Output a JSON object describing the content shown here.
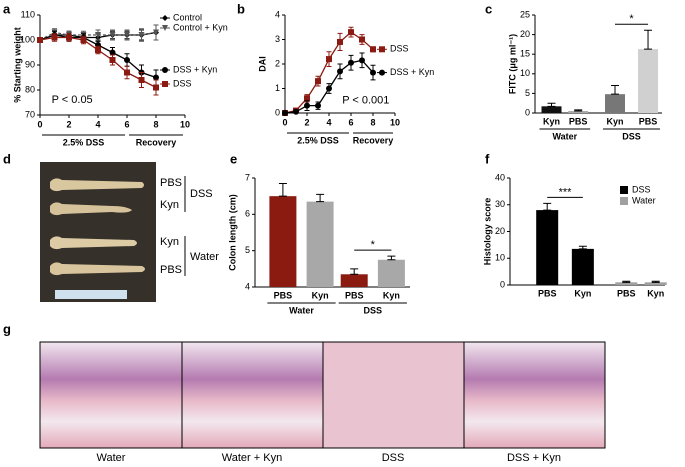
{
  "panel_labels": [
    "a",
    "b",
    "c",
    "d",
    "e",
    "f",
    "g"
  ],
  "chart_data": [
    {
      "type": "line",
      "ylabel": "% Starting weight",
      "x": [
        0,
        1,
        2,
        3,
        4,
        5,
        6,
        7,
        8
      ],
      "xlim": [
        0,
        10
      ],
      "xticks": [
        0,
        2,
        4,
        6,
        8,
        10
      ],
      "ylim": [
        70,
        110
      ],
      "yticks": [
        70,
        80,
        90,
        100,
        110
      ],
      "legend": "right",
      "series": [
        {
          "name": "Control",
          "color": "#000000",
          "marker": "diamond",
          "values": [
            100,
            102,
            102,
            101,
            101,
            102,
            102,
            102,
            103
          ],
          "errors": [
            1,
            1.5,
            1.5,
            1.5,
            1.5,
            1.5,
            1.5,
            2,
            3
          ]
        },
        {
          "name": "Control + Kyn",
          "color": "#555555",
          "marker": "triangle",
          "values": [
            100,
            103,
            102,
            102,
            102,
            102,
            102,
            102,
            103
          ],
          "errors": [
            1,
            1.5,
            1.5,
            1.5,
            2,
            2,
            2,
            2.5,
            3
          ]
        },
        {
          "name": "DSS + Kyn",
          "color": "#000000",
          "marker": "circle",
          "values": [
            100,
            102,
            101,
            101,
            98,
            95,
            92,
            87,
            85
          ],
          "errors": [
            1,
            1.5,
            1.5,
            1.5,
            1.5,
            2,
            2.5,
            3,
            3
          ]
        },
        {
          "name": "DSS",
          "color": "#8b1a12",
          "marker": "square",
          "values": [
            100,
            101,
            101,
            100,
            96,
            92,
            87,
            84,
            81
          ],
          "errors": [
            1,
            1.5,
            1.5,
            1.5,
            1.5,
            2,
            2.5,
            3,
            3
          ]
        }
      ],
      "annotations": [
        {
          "text": "P < 0.05",
          "x": 0.8,
          "y": 76
        }
      ],
      "periods": [
        {
          "label": "2.5% DSS",
          "range": [
            0,
            6
          ]
        },
        {
          "label": "Recovery",
          "range": [
            6,
            10
          ]
        }
      ]
    },
    {
      "type": "line",
      "ylabel": "DAI",
      "x": [
        0,
        1,
        2,
        3,
        4,
        5,
        6,
        7,
        8
      ],
      "xlim": [
        0,
        10
      ],
      "xticks": [
        0,
        2,
        4,
        6,
        8,
        10
      ],
      "ylim": [
        0,
        4
      ],
      "yticks": [
        0,
        1,
        2,
        3,
        4
      ],
      "legend": "end",
      "series": [
        {
          "name": "DSS",
          "color": "#8b1a12",
          "marker": "square",
          "values": [
            0,
            0.1,
            0.6,
            1.3,
            2.2,
            2.9,
            3.3,
            3.0,
            2.6
          ],
          "errors": [
            0,
            0.05,
            0.15,
            0.2,
            0.3,
            0.35,
            0.2,
            0.2,
            0.1
          ]
        },
        {
          "name": "DSS + Kyn",
          "color": "#000000",
          "marker": "circle",
          "values": [
            0,
            0.05,
            0.3,
            0.3,
            1.0,
            1.7,
            2.05,
            2.15,
            1.65
          ],
          "errors": [
            0,
            0.05,
            0.2,
            0.15,
            0.2,
            0.3,
            0.3,
            0.3,
            0.3
          ]
        }
      ],
      "annotations": [
        {
          "text": "P < 0.001",
          "x": 5.2,
          "y": 0.5
        }
      ],
      "periods": [
        {
          "label": "2.5% DSS",
          "range": [
            0,
            6
          ]
        },
        {
          "label": "Recovery",
          "range": [
            6,
            10
          ]
        }
      ]
    },
    {
      "type": "bar",
      "ylabel": "FITC (μg ml⁻¹)",
      "categories": [
        "Kyn",
        "PBS",
        "Kyn",
        "PBS"
      ],
      "groups": [
        "Water",
        "DSS"
      ],
      "values": [
        1.7,
        0.5,
        4.8,
        16.3
      ],
      "errors": [
        0.8,
        0.3,
        2.2,
        4.8
      ],
      "colors": [
        "#111111",
        "#aaaaaa",
        "#777777",
        "#d0d0d0"
      ],
      "ylim": [
        0,
        25
      ],
      "yticks": [
        0,
        5,
        10,
        15,
        20,
        25
      ],
      "annotations": [
        {
          "text": "*",
          "between": [
            2,
            3
          ]
        }
      ]
    },
    {
      "type": "bar",
      "ylabel": "Colon length (cm)",
      "categories": [
        "PBS",
        "Kyn",
        "PBS",
        "Kyn"
      ],
      "groups": [
        "Water",
        "DSS"
      ],
      "values": [
        6.5,
        6.35,
        4.35,
        4.75
      ],
      "errors": [
        0.35,
        0.2,
        0.15,
        0.1
      ],
      "colors": [
        "#8b1a10",
        "#a8a8a8",
        "#8b1a10",
        "#a8a8a8"
      ],
      "ylim": [
        4,
        7
      ],
      "yticks": [
        4,
        5,
        6,
        7
      ],
      "annotations": [
        {
          "text": "*",
          "between": [
            2,
            3
          ]
        }
      ]
    },
    {
      "type": "bar",
      "ylabel": "Histology score",
      "categories": [
        "PBS",
        "Kyn",
        "PBS",
        "Kyn"
      ],
      "legend": "right",
      "series": [
        {
          "name": "DSS",
          "color": "#000000",
          "values": [
            28,
            13.5,
            null,
            null
          ],
          "errors": [
            2.5,
            1,
            null,
            null
          ]
        },
        {
          "name": "Water",
          "color": "#a0a0a0",
          "values": [
            null,
            null,
            1,
            1
          ],
          "errors": [
            null,
            null,
            0.4,
            0.4
          ]
        }
      ],
      "ylim": [
        0,
        40
      ],
      "yticks": [
        0,
        10,
        20,
        30,
        40
      ],
      "annotations": [
        {
          "text": "***",
          "between": [
            0,
            1
          ]
        }
      ]
    }
  ],
  "photo_d": {
    "labels": [
      "PBS",
      "Kyn",
      "Kyn",
      "PBS"
    ],
    "groups": [
      "DSS",
      "Water"
    ]
  },
  "photo_g": {
    "captions": [
      "Water",
      "Water + Kyn",
      "DSS",
      "DSS + Kyn"
    ]
  }
}
